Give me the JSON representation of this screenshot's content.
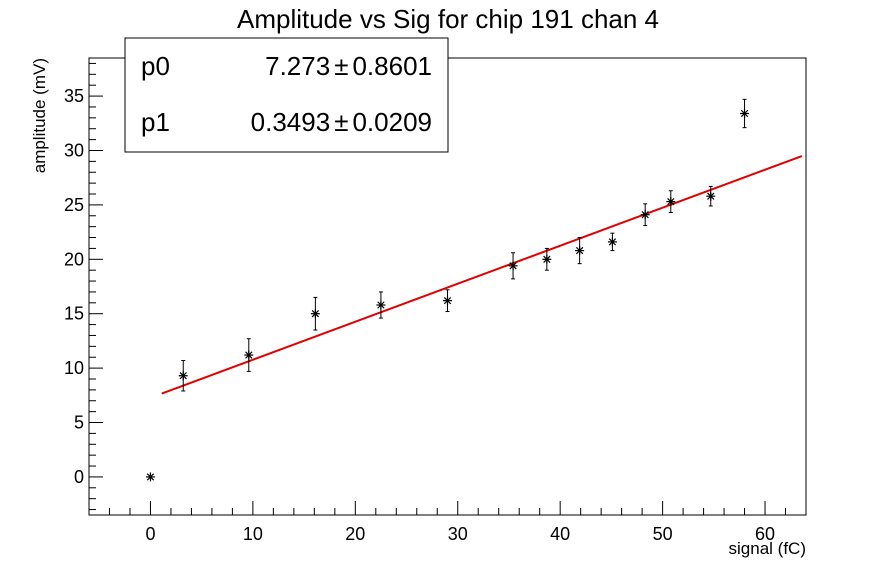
{
  "chart_data": {
    "type": "scatter",
    "title": "Amplitude vs Sig for chip 191 chan 4",
    "xlabel": "signal (fC)",
    "ylabel": "amplitude (mV)",
    "xlim": [
      -6,
      64
    ],
    "ylim": [
      -3.5,
      38.5
    ],
    "x_ticks": [
      0,
      10,
      20,
      30,
      40,
      50,
      60
    ],
    "y_ticks": [
      0,
      5,
      10,
      15,
      20,
      25,
      30,
      35
    ],
    "grid": false,
    "marker": "asterisk",
    "points": [
      {
        "x": 0.0,
        "y": 0.0,
        "err": 0.0
      },
      {
        "x": 3.2,
        "y": 9.3,
        "err": 1.4
      },
      {
        "x": 9.6,
        "y": 11.2,
        "err": 1.5
      },
      {
        "x": 16.1,
        "y": 15.0,
        "err": 1.5
      },
      {
        "x": 22.5,
        "y": 15.8,
        "err": 1.2
      },
      {
        "x": 29.0,
        "y": 16.2,
        "err": 1.0
      },
      {
        "x": 35.4,
        "y": 19.4,
        "err": 1.2
      },
      {
        "x": 38.7,
        "y": 20.0,
        "err": 1.0
      },
      {
        "x": 41.9,
        "y": 20.8,
        "err": 1.2
      },
      {
        "x": 45.1,
        "y": 21.6,
        "err": 0.8
      },
      {
        "x": 48.3,
        "y": 24.1,
        "err": 1.0
      },
      {
        "x": 50.8,
        "y": 25.3,
        "err": 1.0
      },
      {
        "x": 54.7,
        "y": 25.8,
        "err": 0.9
      },
      {
        "x": 58.0,
        "y": 33.4,
        "err": 1.3
      }
    ],
    "fit": {
      "p0": 7.273,
      "p1": 0.3493,
      "x_range": [
        1.1,
        63.6
      ],
      "color": "#e00000"
    },
    "stats_box": {
      "placement": "top-left",
      "rows": [
        {
          "name": "p0",
          "value": "7.273",
          "pm": "±",
          "error": "0.8601"
        },
        {
          "name": "p1",
          "value": "0.3493",
          "pm": "±",
          "error": "0.0209"
        }
      ]
    }
  }
}
